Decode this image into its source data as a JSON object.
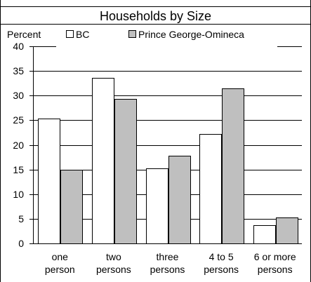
{
  "chart_data": {
    "type": "bar",
    "title": "Households by Size",
    "ylabel": "Percent",
    "xlabel": "",
    "ylim": [
      0,
      40
    ],
    "yticks": [
      0,
      5,
      10,
      15,
      20,
      25,
      30,
      35,
      40
    ],
    "grid": true,
    "legend_position": "top",
    "categories": [
      [
        "one",
        "person"
      ],
      [
        "two",
        "persons"
      ],
      [
        "three",
        "persons"
      ],
      [
        "4 to 5",
        "persons"
      ],
      [
        "6 or more",
        "persons"
      ]
    ],
    "series": [
      {
        "name": "BC",
        "color": "#ffffff",
        "values": [
          25.3,
          33.6,
          15.2,
          22.2,
          3.7
        ]
      },
      {
        "name": "Prince George-Omineca",
        "color": "#bfbfbf",
        "values": [
          15.0,
          29.3,
          17.8,
          31.5,
          5.3
        ]
      }
    ]
  }
}
